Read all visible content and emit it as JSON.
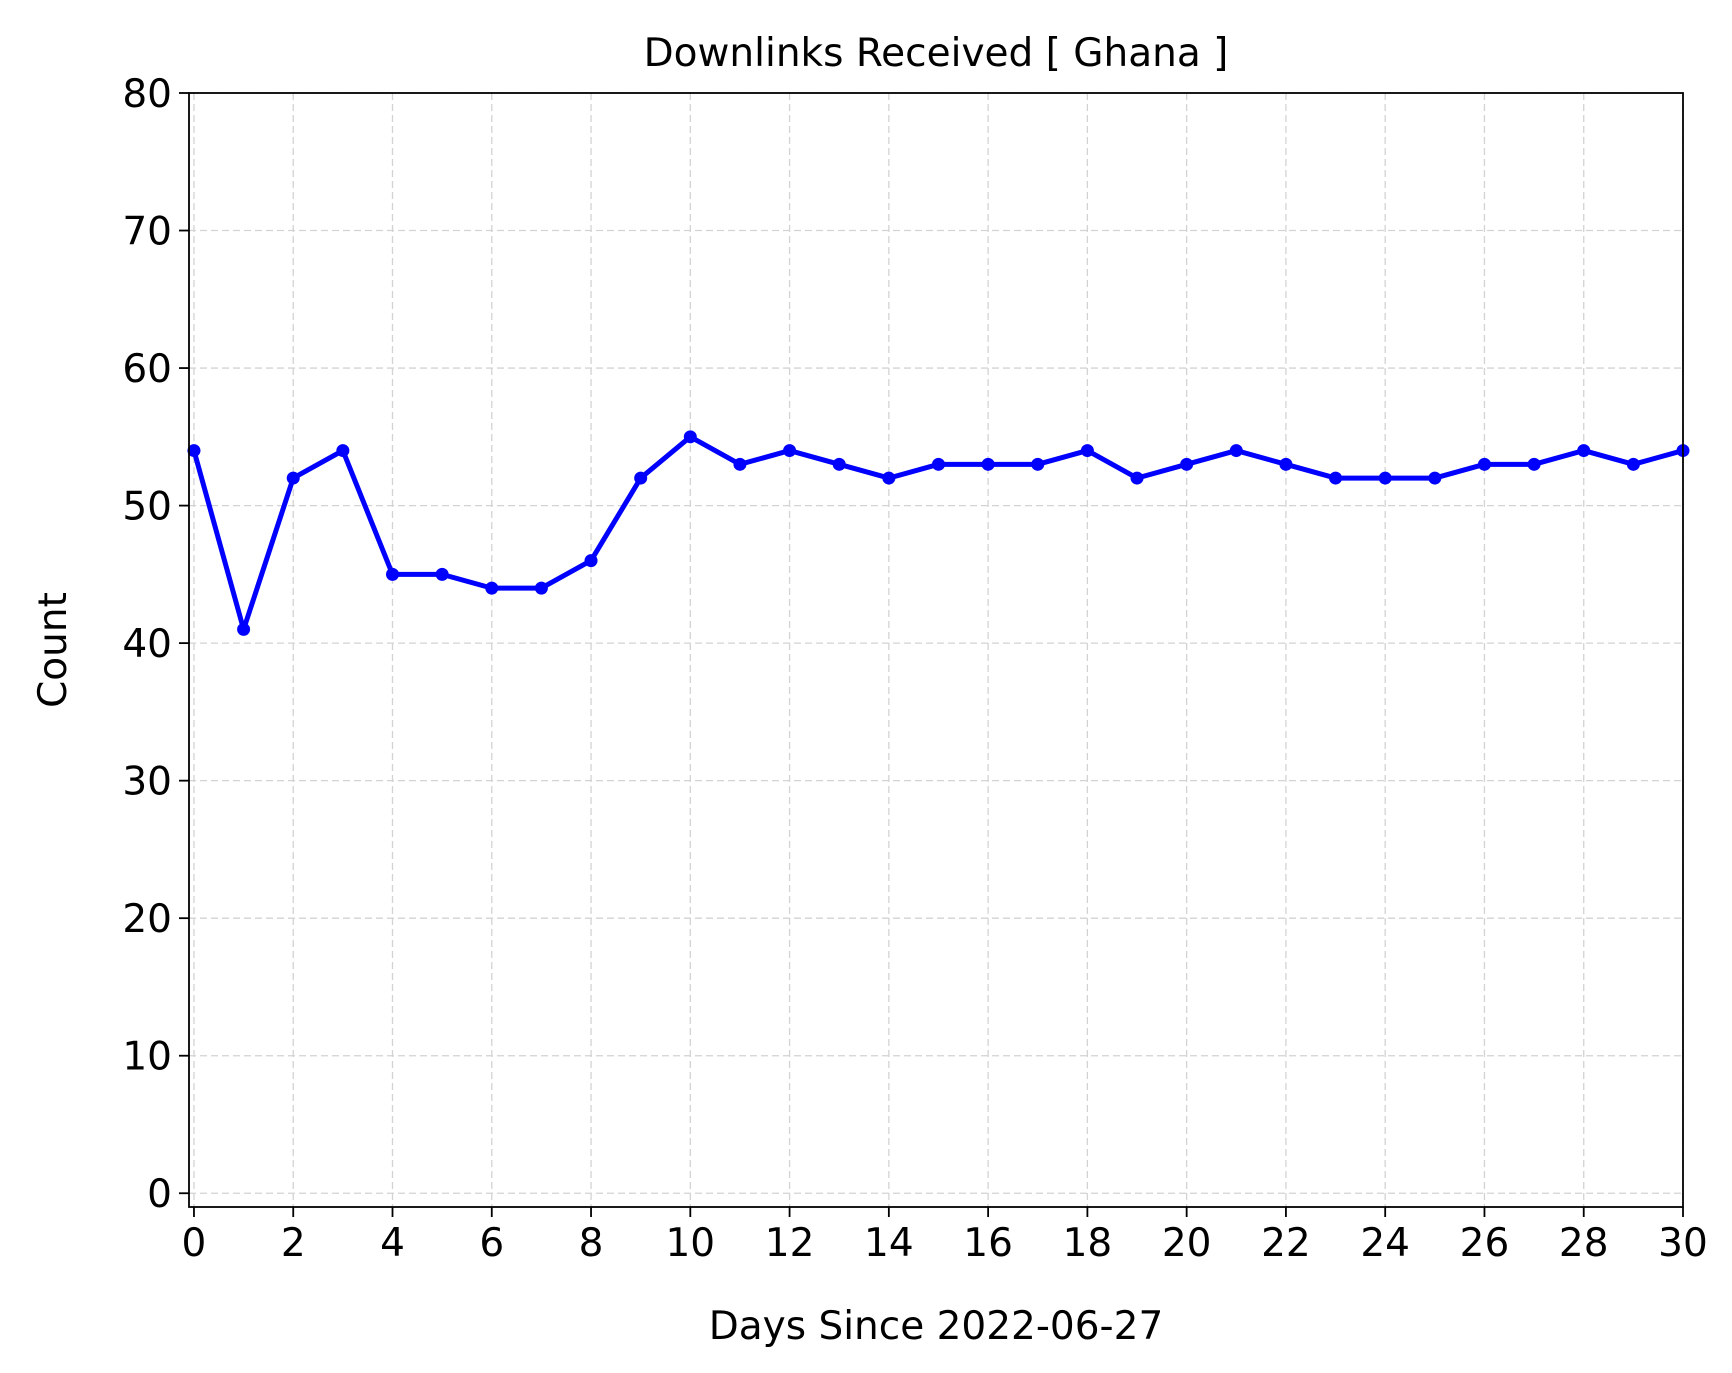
{
  "chart_data": {
    "type": "line",
    "title": "Downlinks Received [ Ghana ]",
    "xlabel": "Days Since 2022-06-27",
    "ylabel": "Count",
    "xlim": [
      -0.1,
      30
    ],
    "ylim": [
      -1,
      80
    ],
    "xticks": [
      0,
      2,
      4,
      6,
      8,
      10,
      12,
      14,
      16,
      18,
      20,
      22,
      24,
      26,
      28,
      30
    ],
    "yticks": [
      0,
      10,
      20,
      30,
      40,
      50,
      60,
      70,
      80
    ],
    "grid": true,
    "line_color": "#0000ff",
    "series": [
      {
        "x": [
          0,
          1,
          2,
          3,
          4,
          5,
          6,
          7,
          8,
          9,
          10,
          11,
          12,
          13,
          14,
          15,
          16,
          17,
          18,
          19,
          20,
          21,
          22,
          23,
          24,
          25,
          26,
          27,
          28,
          29,
          30
        ],
        "values": [
          54,
          41,
          52,
          54,
          45,
          45,
          44,
          44,
          46,
          52,
          55,
          53,
          54,
          53,
          52,
          53,
          53,
          53,
          54,
          52,
          53,
          54,
          53,
          52,
          52,
          52,
          53,
          53,
          54,
          53,
          54
        ]
      }
    ]
  }
}
